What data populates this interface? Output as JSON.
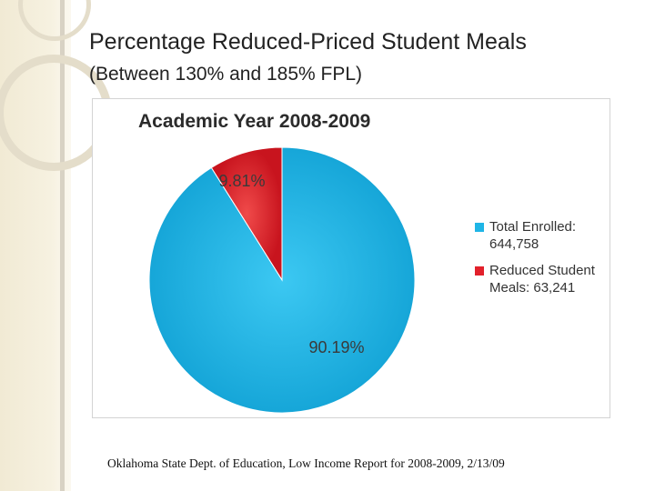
{
  "slide": {
    "title": "Percentage Reduced-Priced Student Meals",
    "subtitle": "(Between 130% and 185% FPL)",
    "source": "Oklahoma State Dept. of Education, Low Income Report for 2008-2009, 2/13/09"
  },
  "chart_data": {
    "type": "pie",
    "title": "Academic Year 2008-2009",
    "slices": [
      {
        "name": "Total Enrolled:",
        "value_label": "644,758",
        "value": 644758,
        "percent": 90.19,
        "percent_label": "90.19%",
        "color": "#1fb5e6"
      },
      {
        "name": "Reduced Student Meals:",
        "value_label": "63,241",
        "value": 63241,
        "percent": 9.81,
        "percent_label": "9.81%",
        "color": "#e2212b"
      }
    ],
    "legend_position": "right"
  }
}
